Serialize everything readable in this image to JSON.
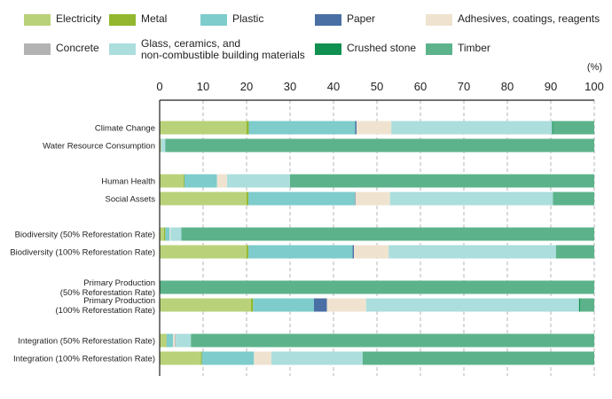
{
  "chart_data": {
    "type": "bar",
    "orientation": "horizontal",
    "stacked": true,
    "title": "",
    "xlabel": "",
    "ylabel": "",
    "unit_label": "(%)",
    "xlim": [
      0,
      100
    ],
    "xticks": [
      0,
      10,
      20,
      30,
      40,
      50,
      60,
      70,
      80,
      90,
      100
    ],
    "grid": "vertical dashed",
    "legend_position": "top",
    "categories": [
      "Climate Change",
      "Water Resource Consumption",
      "Human Health",
      "Social Assets",
      "Biodiversity (50% Reforestation Rate)",
      "Biodiversity (100% Reforestation Rate)",
      "Primary Production\n(50% Reforestation Rate)",
      "Primary Production\n(100% Reforestation Rate)",
      "Integration  (50% Reforestation Rate)",
      "Integration (100% Reforestation Rate)"
    ],
    "series": [
      {
        "name": "Electricity",
        "color": "#b9d27a",
        "values": [
          20,
          0.3,
          5.5,
          20,
          1,
          20,
          0,
          21,
          1.5,
          9.5
        ]
      },
      {
        "name": "Metal",
        "color": "#93b82f",
        "values": [
          0.5,
          0,
          0.2,
          0.4,
          0.3,
          0.4,
          0,
          0.5,
          0.1,
          0.2
        ]
      },
      {
        "name": "Plastic",
        "color": "#7ecccc",
        "values": [
          24.5,
          0,
          7.5,
          24.5,
          1,
          24,
          0,
          14,
          1.5,
          12
        ]
      },
      {
        "name": "Paper",
        "color": "#4a6fa5",
        "values": [
          0.3,
          0,
          0,
          0.1,
          0,
          0.3,
          0,
          3,
          0,
          0
        ]
      },
      {
        "name": "Adhesives, coatings, reagents",
        "color": "#efe3d0",
        "values": [
          8,
          0,
          2.3,
          8,
          0.2,
          8,
          0,
          9,
          0.4,
          4
        ]
      },
      {
        "name": "Concrete",
        "color": "#b3b3b3",
        "values": [
          0,
          0,
          0,
          0,
          0,
          0,
          0,
          0,
          0.2,
          0
        ]
      },
      {
        "name": "Glass, ceramics, and\nnon-combustible building materials",
        "color": "#abdedd",
        "values": [
          37,
          1,
          14.5,
          37.5,
          2.5,
          38.5,
          0,
          49,
          3.5,
          21
        ]
      },
      {
        "name": "Crushed stone",
        "color": "#0f8f50",
        "values": [
          0.2,
          0,
          0,
          0,
          0,
          0,
          0,
          0.3,
          0,
          0
        ]
      },
      {
        "name": "Timber",
        "color": "#5cb38b",
        "values": [
          9.5,
          98.7,
          70,
          9.5,
          95,
          8.8,
          100,
          3.2,
          92.8,
          53.3
        ]
      }
    ]
  }
}
